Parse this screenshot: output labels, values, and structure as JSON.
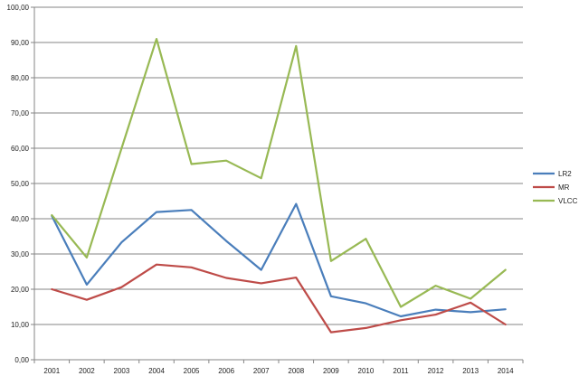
{
  "chart_data": {
    "type": "line",
    "title": "",
    "xlabel": "",
    "ylabel": "",
    "x": [
      "2001",
      "2002",
      "2003",
      "2004",
      "2005",
      "2006",
      "2007",
      "2008",
      "2009",
      "2010",
      "2011",
      "2012",
      "2013",
      "2014"
    ],
    "y_ticks": [
      "0,00",
      "10,00",
      "20,00",
      "30,00",
      "40,00",
      "50,00",
      "60,00",
      "70,00",
      "80,00",
      "90,00",
      "100,00"
    ],
    "ylim": [
      0,
      100
    ],
    "grid": true,
    "legend_position": "right",
    "series": [
      {
        "name": "LR2",
        "color": "#4a7ebb",
        "values": [
          40.8,
          21.3,
          33.3,
          41.9,
          42.5,
          33.7,
          25.5,
          44.2,
          18.0,
          16.0,
          12.3,
          14.2,
          13.5,
          14.3
        ]
      },
      {
        "name": "MR",
        "color": "#be4b48",
        "values": [
          20.0,
          17.0,
          20.6,
          27.0,
          26.2,
          23.2,
          21.7,
          23.3,
          7.8,
          9.0,
          11.2,
          12.8,
          16.2,
          10.0
        ]
      },
      {
        "name": "VLCC",
        "color": "#98b954",
        "values": [
          41.0,
          29.0,
          60.0,
          91.0,
          55.5,
          56.5,
          51.5,
          89.0,
          28.0,
          34.3,
          15.0,
          21.0,
          17.3,
          25.5
        ]
      }
    ]
  }
}
